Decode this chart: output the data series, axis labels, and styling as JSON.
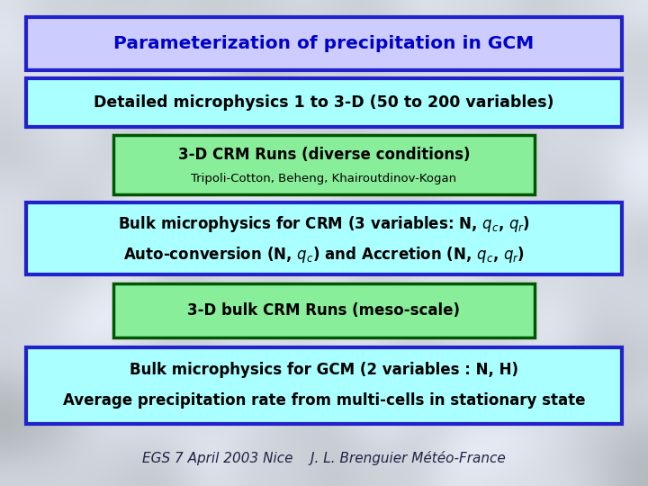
{
  "title_text": "Parameterization of precipitation in GCM",
  "title_box_bg": "#ccccff",
  "title_box_edge": "#2222cc",
  "title_text_color": "#0000cc",
  "box2_text": "Detailed microphysics 1 to 3-D (50 to 200 variables)",
  "box2_bg": "#aaffff",
  "box2_edge": "#2222cc",
  "box2_text_color": "#000000",
  "box3_line1": "3-D CRM Runs (diverse conditions)",
  "box3_line2": "Tripoli-Cotton, Beheng, Khairoutdinov-Kogan",
  "box3_bg": "#88ee99",
  "box3_edge": "#005500",
  "box3_text_color": "#000000",
  "box4_line1": "Bulk microphysics for CRM (3 variables: N, $q_c$, $q_r$)",
  "box4_line2": "Auto-conversion (N, $q_c$) and Accretion (N, $q_c$, $q_r$)",
  "box4_bg": "#aaffff",
  "box4_edge": "#2222cc",
  "box4_text_color": "#000000",
  "box5_text": "3-D bulk CRM Runs (meso-scale)",
  "box5_bg": "#88ee99",
  "box5_edge": "#005500",
  "box5_text_color": "#000000",
  "box6_line1": "Bulk microphysics for GCM (2 variables : N, H)",
  "box6_line2": "Average precipitation rate from multi-cells in stationary state",
  "box6_bg": "#aaffff",
  "box6_edge": "#2222cc",
  "box6_text_color": "#000000",
  "footer_text": "EGS 7 April 2003 Nice    J. L. Brenguier Météo-France",
  "footer_color": "#222244",
  "bg_color_top": "#b8c8d8",
  "bg_color_bot": "#c8d4dc"
}
